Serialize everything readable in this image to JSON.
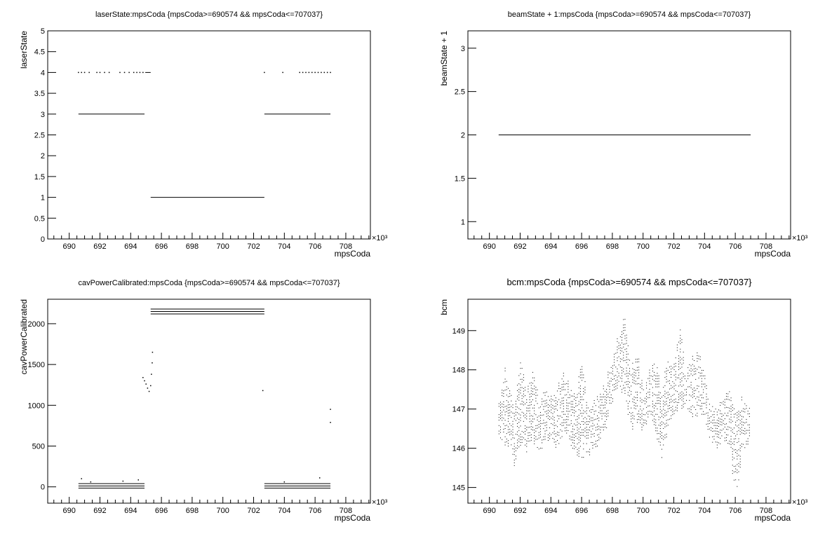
{
  "chart_data": [
    {
      "type": "scatter",
      "title": "laserState:mpsCoda {mpsCoda>=690574 && mpsCoda<=707037}",
      "xlabel": "mpsCoda",
      "ylabel": "laserState",
      "x_multiplier": "×10³",
      "xlim": [
        688.6,
        709.6
      ],
      "ylim": [
        0,
        5
      ],
      "xticks": [
        "690",
        "692",
        "694",
        "696",
        "698",
        "700",
        "702",
        "704",
        "706",
        "708"
      ],
      "yticks": [
        "0",
        "0.5",
        "1",
        "1.5",
        "2",
        "2.5",
        "3",
        "3.5",
        "4",
        "4.5",
        "5"
      ],
      "segments": [
        {
          "y": 3,
          "x0": 690.6,
          "x1": 694.9
        },
        {
          "y": 4,
          "x0": 694.95,
          "x1": 695.3
        },
        {
          "y": 1,
          "x0": 695.3,
          "x1": 702.7
        },
        {
          "y": 3,
          "x0": 702.7,
          "x1": 707.0
        }
      ],
      "points": [
        [
          690.6,
          4
        ],
        [
          690.8,
          4
        ],
        [
          691.0,
          4
        ],
        [
          691.3,
          4
        ],
        [
          691.8,
          4
        ],
        [
          692.0,
          4
        ],
        [
          692.3,
          4
        ],
        [
          692.6,
          4
        ],
        [
          693.3,
          4
        ],
        [
          693.6,
          4
        ],
        [
          693.9,
          4
        ],
        [
          694.2,
          4
        ],
        [
          694.4,
          4
        ],
        [
          694.6,
          4
        ],
        [
          694.8,
          4
        ],
        [
          702.7,
          4
        ],
        [
          703.9,
          4
        ],
        [
          705.0,
          4
        ],
        [
          705.2,
          4
        ],
        [
          705.4,
          4
        ],
        [
          705.6,
          4
        ],
        [
          705.8,
          4
        ],
        [
          706.0,
          4
        ],
        [
          706.2,
          4
        ],
        [
          706.4,
          4
        ],
        [
          706.6,
          4
        ],
        [
          706.8,
          4
        ],
        [
          707.0,
          4
        ]
      ]
    },
    {
      "type": "scatter",
      "title": "beamState + 1:mpsCoda {mpsCoda>=690574 && mpsCoda<=707037}",
      "xlabel": "mpsCoda",
      "ylabel": "beamState + 1",
      "x_multiplier": "×10³",
      "xlim": [
        688.6,
        709.6
      ],
      "ylim": [
        0.8,
        3.2
      ],
      "xticks": [
        "690",
        "692",
        "694",
        "696",
        "698",
        "700",
        "702",
        "704",
        "706",
        "708"
      ],
      "yticks": [
        "1",
        "1.5",
        "2",
        "2.5",
        "3"
      ],
      "segments": [
        {
          "y": 2,
          "x0": 690.6,
          "x1": 707.0
        }
      ],
      "points": []
    },
    {
      "type": "scatter",
      "title": "cavPowerCalibrated:mpsCoda {mpsCoda>=690574 && mpsCoda<=707037}",
      "xlabel": "mpsCoda",
      "ylabel": "cavPowerCalibrated",
      "x_multiplier": "×10³",
      "xlim": [
        688.6,
        709.6
      ],
      "ylim": [
        -200,
        2300
      ],
      "xticks": [
        "690",
        "692",
        "694",
        "696",
        "698",
        "700",
        "702",
        "704",
        "706",
        "708"
      ],
      "yticks": [
        "0",
        "500",
        "1000",
        "1500",
        "2000"
      ],
      "segments": [
        {
          "y": 40,
          "x0": 690.6,
          "x1": 694.9
        },
        {
          "y": 10,
          "x0": 690.6,
          "x1": 694.9
        },
        {
          "y": -15,
          "x0": 690.6,
          "x1": 694.9
        },
        {
          "y": 2180,
          "x0": 695.3,
          "x1": 702.7
        },
        {
          "y": 2150,
          "x0": 695.3,
          "x1": 702.7
        },
        {
          "y": 2120,
          "x0": 695.3,
          "x1": 702.7
        },
        {
          "y": 40,
          "x0": 702.7,
          "x1": 707.0
        },
        {
          "y": 10,
          "x0": 702.7,
          "x1": 707.0
        },
        {
          "y": -15,
          "x0": 702.7,
          "x1": 707.0
        }
      ],
      "points": [
        [
          690.8,
          100
        ],
        [
          691.4,
          60
        ],
        [
          693.5,
          70
        ],
        [
          694.5,
          85
        ],
        [
          694.8,
          1340
        ],
        [
          694.9,
          1300
        ],
        [
          695.0,
          1260
        ],
        [
          695.1,
          1210
        ],
        [
          695.2,
          1170
        ],
        [
          695.3,
          1240
        ],
        [
          695.35,
          1380
        ],
        [
          695.4,
          1520
        ],
        [
          695.42,
          1650
        ],
        [
          702.6,
          1180
        ],
        [
          704.0,
          60
        ],
        [
          706.3,
          110
        ],
        [
          707.0,
          950
        ],
        [
          707.0,
          790
        ]
      ]
    },
    {
      "type": "scatter",
      "title": "bcm:mpsCoda {mpsCoda>=690574 && mpsCoda<=707037}",
      "xlabel": "mpsCoda",
      "ylabel": "bcm",
      "x_multiplier": "×10³",
      "xlim": [
        688.6,
        709.6
      ],
      "ylim": [
        144.6,
        149.8
      ],
      "xticks": [
        "690",
        "692",
        "694",
        "696",
        "698",
        "700",
        "702",
        "704",
        "706",
        "708"
      ],
      "yticks": [
        "145",
        "146",
        "147",
        "148",
        "149"
      ],
      "band": [
        [
          690.6,
          146.5,
          147.3
        ],
        [
          691.0,
          145.9,
          148.0
        ],
        [
          691.3,
          146.3,
          147.6
        ],
        [
          691.6,
          145.5,
          147.0
        ],
        [
          692.0,
          146.2,
          148.2
        ],
        [
          692.4,
          146.0,
          147.4
        ],
        [
          692.8,
          146.3,
          148.0
        ],
        [
          693.2,
          145.8,
          147.2
        ],
        [
          693.6,
          146.2,
          147.6
        ],
        [
          694.0,
          146.3,
          147.3
        ],
        [
          694.4,
          146.0,
          147.5
        ],
        [
          694.8,
          146.5,
          147.9
        ],
        [
          695.2,
          146.2,
          147.6
        ],
        [
          695.6,
          145.9,
          147.4
        ],
        [
          696.0,
          145.9,
          148.3
        ],
        [
          696.4,
          145.8,
          147.0
        ],
        [
          696.8,
          146.0,
          147.3
        ],
        [
          697.2,
          146.2,
          147.4
        ],
        [
          697.6,
          146.6,
          147.8
        ],
        [
          698.0,
          147.2,
          148.2
        ],
        [
          698.4,
          147.6,
          149.0
        ],
        [
          698.8,
          147.2,
          149.3
        ],
        [
          699.2,
          146.6,
          148.0
        ],
        [
          699.6,
          146.6,
          148.4
        ],
        [
          700.0,
          146.4,
          147.6
        ],
        [
          700.4,
          146.8,
          148.0
        ],
        [
          700.8,
          146.4,
          148.4
        ],
        [
          701.2,
          145.8,
          147.5
        ],
        [
          701.6,
          146.6,
          148.3
        ],
        [
          702.0,
          146.8,
          148.2
        ],
        [
          702.4,
          147.2,
          149.1
        ],
        [
          702.8,
          147.0,
          148.0
        ],
        [
          703.2,
          146.8,
          148.3
        ],
        [
          703.6,
          147.0,
          148.5
        ],
        [
          704.0,
          146.8,
          147.9
        ],
        [
          704.4,
          146.2,
          147.0
        ],
        [
          704.8,
          146.0,
          147.0
        ],
        [
          705.2,
          146.2,
          147.2
        ],
        [
          705.6,
          146.0,
          147.6
        ],
        [
          706.0,
          144.8,
          146.8
        ],
        [
          706.4,
          145.8,
          147.2
        ],
        [
          706.8,
          146.2,
          147.1
        ],
        [
          707.0,
          146.4,
          147.2
        ]
      ]
    }
  ]
}
